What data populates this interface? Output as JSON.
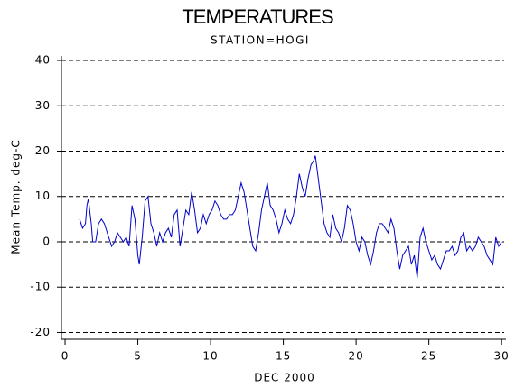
{
  "chart_data": {
    "type": "line",
    "title": "TEMPERATURES",
    "subtitle": "STATION=HOGI",
    "x_label": "DEC 2000",
    "y_label": "Mean Temp. deg-C",
    "color": "#0000cc",
    "grid": true,
    "xlim": [
      -0.25,
      30.3
    ],
    "ylim": [
      -21.5,
      41
    ],
    "xticks": [
      0,
      5,
      10,
      15,
      20,
      25,
      30
    ],
    "yticks": [
      -20,
      -10,
      0,
      10,
      20,
      30,
      40
    ],
    "x": [
      1,
      1.2,
      1.4,
      1.5,
      1.6,
      1.8,
      1.9,
      2.1,
      2.3,
      2.5,
      2.7,
      3,
      3.2,
      3.4,
      3.6,
      3.8,
      4,
      4.2,
      4.4,
      4.6,
      4.8,
      5,
      5.1,
      5.3,
      5.5,
      5.7,
      5.9,
      6.1,
      6.3,
      6.5,
      6.7,
      6.9,
      7.1,
      7.3,
      7.5,
      7.7,
      7.9,
      8.1,
      8.3,
      8.5,
      8.7,
      8.9,
      9.1,
      9.3,
      9.5,
      9.7,
      9.9,
      10.1,
      10.3,
      10.5,
      10.7,
      10.9,
      11.1,
      11.3,
      11.5,
      11.7,
      11.9,
      12.1,
      12.3,
      12.5,
      12.7,
      12.9,
      13.1,
      13.3,
      13.5,
      13.7,
      13.9,
      14.1,
      14.3,
      14.5,
      14.7,
      14.9,
      15.1,
      15.3,
      15.5,
      15.7,
      15.9,
      16.1,
      16.3,
      16.5,
      16.7,
      16.9,
      17.1,
      17.2,
      17.4,
      17.6,
      17.8,
      18,
      18.2,
      18.4,
      18.6,
      18.8,
      19,
      19.2,
      19.4,
      19.6,
      19.8,
      20,
      20.2,
      20.4,
      20.6,
      20.8,
      21,
      21.2,
      21.4,
      21.6,
      21.8,
      22,
      22.2,
      22.4,
      22.6,
      22.8,
      23,
      23.2,
      23.4,
      23.6,
      23.8,
      24,
      24.2,
      24.4,
      24.6,
      24.8,
      25,
      25.2,
      25.4,
      25.6,
      25.8,
      26,
      26.2,
      26.4,
      26.6,
      26.8,
      27,
      27.2,
      27.4,
      27.6,
      27.8,
      28,
      28.2,
      28.4,
      28.6,
      28.8,
      29,
      29.2,
      29.4,
      29.6,
      29.8,
      30
    ],
    "values": [
      5,
      3,
      4,
      8,
      9.5,
      4,
      0,
      0,
      4,
      5,
      4,
      1,
      -1,
      0,
      2,
      1,
      0,
      1,
      -1,
      8,
      5,
      -3,
      -5,
      1,
      9,
      10,
      4,
      2,
      -1,
      2,
      0,
      2,
      3,
      1,
      6,
      7,
      -1,
      3,
      7,
      6,
      11,
      7,
      2,
      3,
      6,
      4,
      6,
      7,
      9,
      8,
      6,
      5,
      5,
      6,
      6,
      7,
      10,
      13,
      11,
      7,
      3,
      -1,
      -2,
      2,
      7,
      10,
      13,
      8,
      7,
      5,
      2,
      4,
      7,
      5,
      4,
      6,
      10,
      15,
      12,
      10,
      14,
      17,
      18,
      19,
      14,
      9,
      4,
      2,
      1,
      6,
      3,
      2,
      0,
      3,
      8,
      7,
      4,
      0,
      -2,
      1,
      0,
      -3,
      -5,
      -2,
      2,
      4,
      4,
      3,
      2,
      5,
      3,
      -2,
      -6,
      -3,
      -2,
      -1,
      -5,
      -3,
      -8,
      1,
      3,
      0,
      -2,
      -4,
      -3,
      -5,
      -6,
      -4,
      -2,
      -2,
      -1,
      -3,
      -2,
      1,
      2,
      -2,
      -1,
      -2,
      -1,
      1,
      0,
      -1,
      -3,
      -4,
      -5,
      1,
      -1,
      0
    ]
  }
}
